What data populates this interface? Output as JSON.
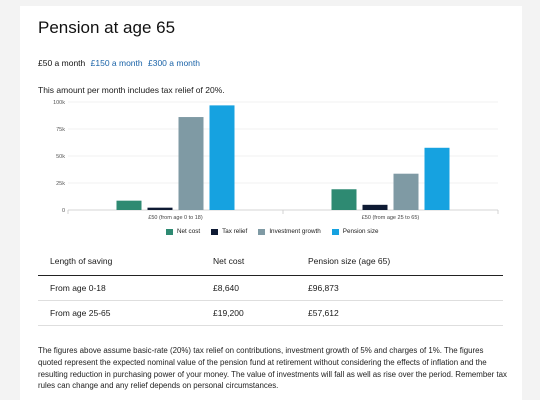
{
  "title": "Pension at age 65",
  "amount_options": [
    {
      "label": "£50 a month",
      "active": true
    },
    {
      "label": "£150 a month",
      "active": false
    },
    {
      "label": "£300 a month",
      "active": false
    }
  ],
  "relief_text": "This amount per month includes tax relief of 20%.",
  "colors": {
    "net_cost": "#2e8a72",
    "tax_relief": "#0e1a33",
    "investment_growth": "#7f9aa4",
    "pension_size": "#16a2e0"
  },
  "chart_data": {
    "type": "bar",
    "categories": [
      "£50 (from age 0 to 18)",
      "£50 (from age 25 to 65)"
    ],
    "series": [
      {
        "name": "Net cost",
        "values": [
          8640,
          19200
        ]
      },
      {
        "name": "Tax relief",
        "values": [
          2160,
          4800
        ]
      },
      {
        "name": "Investment growth",
        "values": [
          86073,
          33612
        ]
      },
      {
        "name": "Pension size",
        "values": [
          96873,
          57612
        ]
      }
    ],
    "yticks": [
      "0",
      "25k",
      "50k",
      "75k",
      "100k"
    ],
    "ylim": [
      0,
      100000
    ],
    "legend_position": "bottom",
    "grid": true
  },
  "table": {
    "headers": [
      "Length of saving",
      "Net cost",
      "Pension size (age 65)"
    ],
    "rows": [
      [
        "From age 0-18",
        "£8,640",
        "£96,873"
      ],
      [
        "From age 25-65",
        "£19,200",
        "£57,612"
      ]
    ]
  },
  "note": "The figures above assume basic-rate (20%) tax relief on contributions, investment growth of 5% and charges of 1%. The figures quoted represent the expected nominal value of the pension fund at retirement without considering the effects of inflation and the resulting reduction in purchasing power of your money. The value of investments will fall as well as rise over the period. Remember tax rules can change and any relief depends on personal circumstances."
}
